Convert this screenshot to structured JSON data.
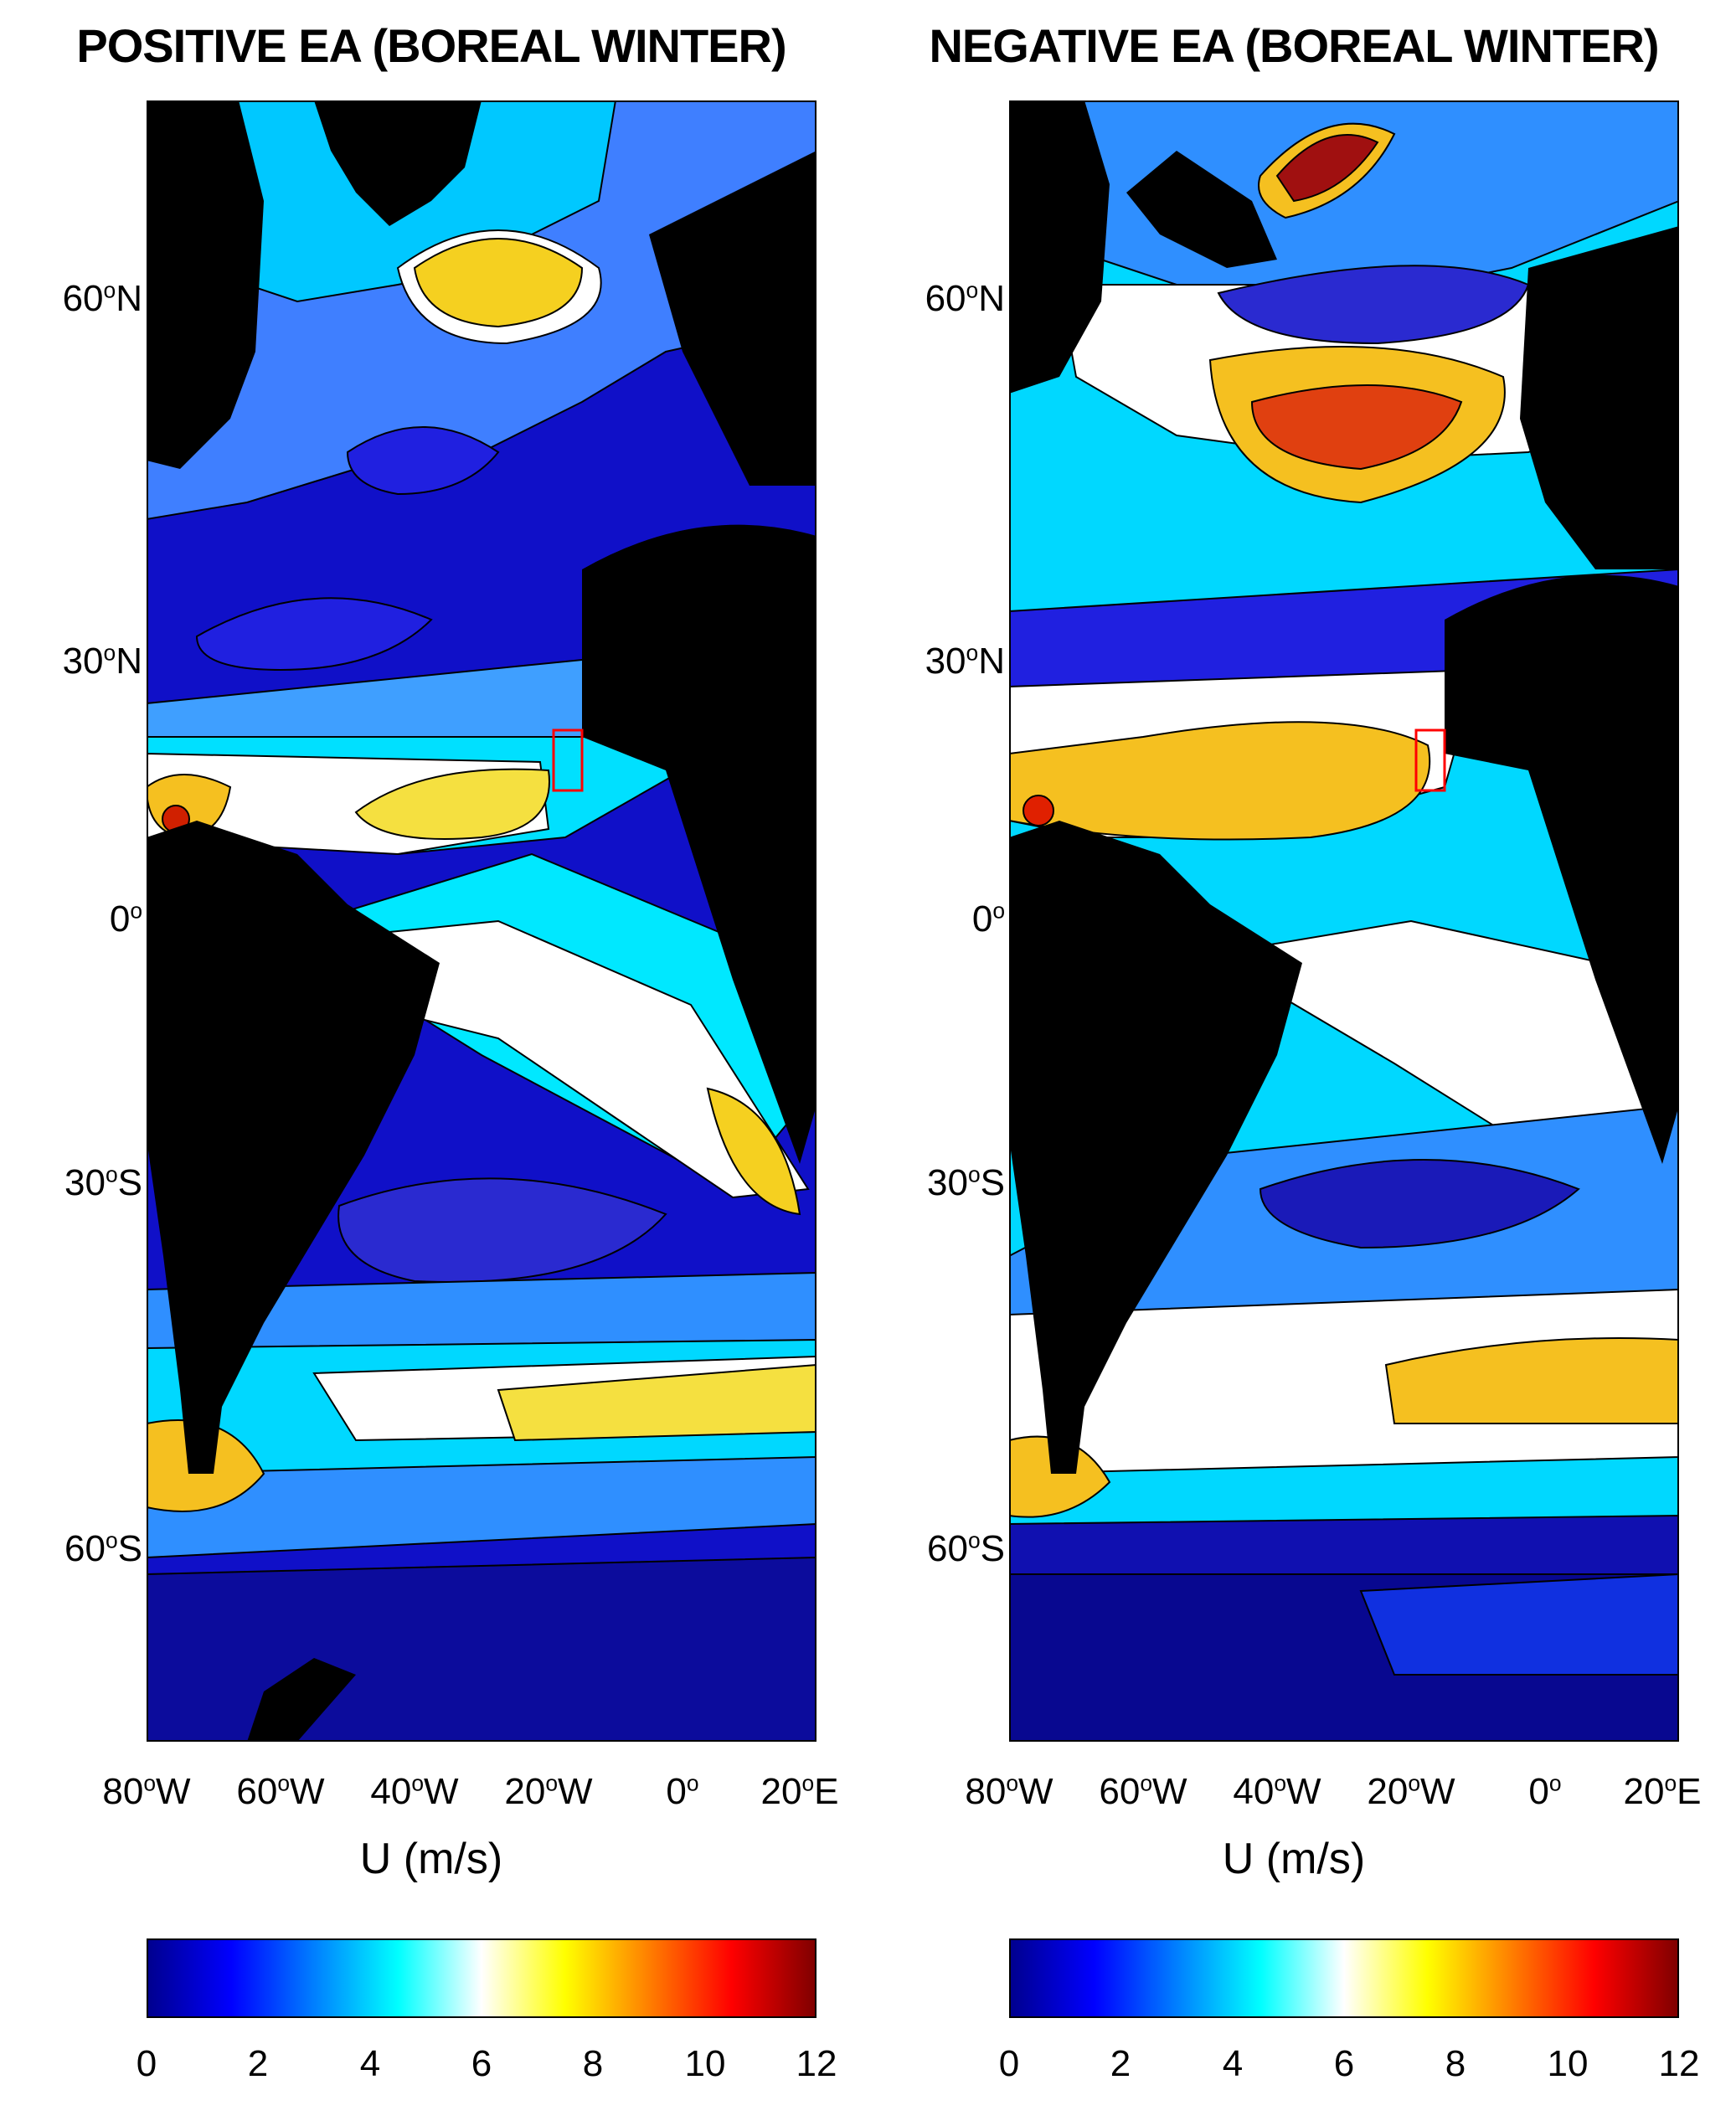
{
  "colors": {
    "ocean_low": "#0a0ab4",
    "mid": "#00ffff",
    "neutral": "#ffffff",
    "high": "#ffd700",
    "max": "#a00000",
    "land": "#000000",
    "box": "#ff0000"
  },
  "colorbar_colors": [
    "#00008f",
    "#0000ff",
    "#0080ff",
    "#00ffff",
    "#ffffff",
    "#ffff00",
    "#ff8000",
    "#ff0000",
    "#800000"
  ],
  "left_panel": {
    "title": "POSITIVE EA (BOREAL WINTER)",
    "y_ticks": [
      {
        "value": 60,
        "label": "60",
        "sup": "o",
        "suffix": "N"
      },
      {
        "value": 30,
        "label": "30",
        "sup": "o",
        "suffix": "N"
      },
      {
        "value": 0,
        "label": "0",
        "sup": "o",
        "suffix": ""
      },
      {
        "value": -30,
        "label": "30",
        "sup": "o",
        "suffix": "S"
      },
      {
        "value": -60,
        "label": "60",
        "sup": "o",
        "suffix": "S"
      }
    ],
    "x_ticks": [
      {
        "value": -80,
        "label": "80",
        "sup": "o",
        "suffix": "W"
      },
      {
        "value": -60,
        "label": "60",
        "sup": "o",
        "suffix": "W"
      },
      {
        "value": -40,
        "label": "40",
        "sup": "o",
        "suffix": "W"
      },
      {
        "value": -20,
        "label": "20",
        "sup": "o",
        "suffix": "W"
      },
      {
        "value": 0,
        "label": "0",
        "sup": "o",
        "suffix": ""
      },
      {
        "value": 20,
        "label": "20",
        "sup": "o",
        "suffix": "E"
      }
    ],
    "x_title": "U (m/s)",
    "colorbar_ticks": [
      "0",
      "2",
      "4",
      "6",
      "8",
      "10",
      "12"
    ]
  },
  "right_panel": {
    "title": "NEGATIVE EA (BOREAL WINTER)",
    "y_ticks": [
      {
        "value": 60,
        "label": "60",
        "sup": "o",
        "suffix": "N"
      },
      {
        "value": 30,
        "label": "30",
        "sup": "o",
        "suffix": "N"
      },
      {
        "value": 0,
        "label": "0",
        "sup": "o",
        "suffix": ""
      },
      {
        "value": -30,
        "label": "30",
        "sup": "o",
        "suffix": "S"
      },
      {
        "value": -60,
        "label": "60",
        "sup": "o",
        "suffix": "S"
      }
    ],
    "x_ticks": [
      {
        "value": -80,
        "label": "80",
        "sup": "o",
        "suffix": "W"
      },
      {
        "value": -60,
        "label": "60",
        "sup": "o",
        "suffix": "W"
      },
      {
        "value": -40,
        "label": "40",
        "sup": "o",
        "suffix": "W"
      },
      {
        "value": -20,
        "label": "20",
        "sup": "o",
        "suffix": "W"
      },
      {
        "value": 0,
        "label": "0",
        "sup": "o",
        "suffix": ""
      },
      {
        "value": 20,
        "label": "20",
        "sup": "o",
        "suffix": "E"
      }
    ],
    "x_title": "U (m/s)",
    "colorbar_ticks": [
      "0",
      "2",
      "4",
      "6",
      "8",
      "10",
      "12"
    ]
  }
}
